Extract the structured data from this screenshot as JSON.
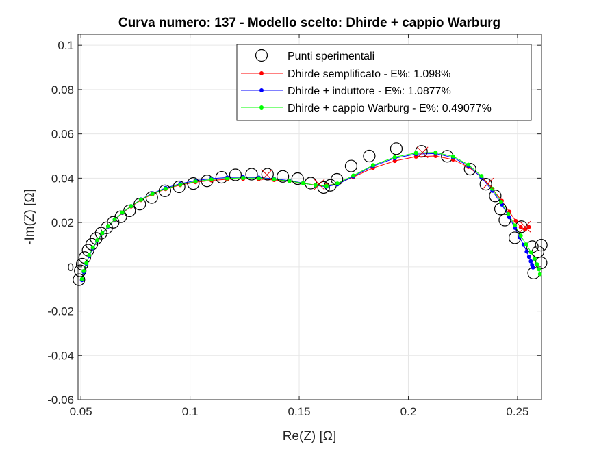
{
  "chart_data": {
    "type": "scatter",
    "title": "Curva numero: 137 - Modello scelto: Dhirde + cappio Warburg",
    "xlabel": "Re(Z) [Ω]",
    "ylabel": "-Im(Z) [Ω]",
    "xlim": [
      0.0487,
      0.261
    ],
    "ylim": [
      -0.06,
      0.105
    ],
    "xticks": [
      "0.05",
      "0.1",
      "0.15",
      "0.2",
      "0.25"
    ],
    "yticks": [
      "-0.06",
      "-0.04",
      "-0.02",
      "0",
      "0.02",
      "0.04",
      "0.06",
      "0.08",
      "0.1"
    ],
    "grid": true,
    "legend_position": "top-right",
    "colors": {
      "experimental": "#000000",
      "red": "#ff0000",
      "blue": "#0000ff",
      "green": "#00ff00",
      "fail_mark": "#e00000"
    },
    "series": [
      {
        "name": "Punti sperimentali",
        "marker": "open-circle",
        "x": [
          0.0491,
          0.0497,
          0.0506,
          0.0518,
          0.0533,
          0.055,
          0.057,
          0.0593,
          0.0618,
          0.0648,
          0.0683,
          0.0723,
          0.077,
          0.0825,
          0.0885,
          0.095,
          0.1015,
          0.1078,
          0.1145,
          0.1208,
          0.1282,
          0.1355,
          0.1425,
          0.1493,
          0.1553,
          0.1612,
          0.1643,
          0.1673,
          0.1738,
          0.1821,
          0.1945,
          0.206,
          0.2178,
          0.2283,
          0.2355,
          0.2398,
          0.2422,
          0.2442,
          0.2488,
          0.2518,
          0.2568,
          0.2594,
          0.2609,
          0.2608,
          0.2574
        ],
        "y": [
          -0.0058,
          -0.0018,
          0.0012,
          0.0042,
          0.0075,
          0.0102,
          0.0128,
          0.0152,
          0.0176,
          0.0201,
          0.0226,
          0.0253,
          0.0283,
          0.0313,
          0.0343,
          0.0361,
          0.0376,
          0.0388,
          0.0404,
          0.0415,
          0.0418,
          0.0418,
          0.0408,
          0.0398,
          0.0378,
          0.0358,
          0.0368,
          0.0395,
          0.0455,
          0.05,
          0.0533,
          0.0521,
          0.0499,
          0.0441,
          0.0373,
          0.032,
          0.0261,
          0.0211,
          0.0131,
          0.0181,
          0.0091,
          0.0068,
          0.0098,
          0.0018,
          -0.0028
        ]
      },
      {
        "name": "Dhirde semplificato - E%: 1.098%",
        "marker": "dot",
        "x": [
          0.0505,
          0.0513,
          0.0525,
          0.0538,
          0.0555,
          0.0575,
          0.0598,
          0.0625,
          0.0655,
          0.069,
          0.073,
          0.0775,
          0.0828,
          0.0888,
          0.0955,
          0.1025,
          0.1098,
          0.117,
          0.1243,
          0.1315,
          0.1385,
          0.1455,
          0.1518,
          0.1575,
          0.1625,
          0.1675,
          0.1748,
          0.1838,
          0.1938,
          0.2035,
          0.2125,
          0.2205,
          0.2275,
          0.2335,
          0.2385,
          0.2428,
          0.2463,
          0.2492,
          0.2515,
          0.2535,
          0.2552
        ],
        "y": [
          -0.0058,
          -0.0022,
          0.0015,
          0.005,
          0.0085,
          0.0118,
          0.015,
          0.0182,
          0.0212,
          0.0243,
          0.0272,
          0.0301,
          0.0328,
          0.0351,
          0.0369,
          0.0382,
          0.039,
          0.0395,
          0.0397,
          0.0396,
          0.0392,
          0.0386,
          0.0377,
          0.0369,
          0.0367,
          0.0375,
          0.0405,
          0.0446,
          0.0478,
          0.0497,
          0.05,
          0.0484,
          0.0451,
          0.0405,
          0.0352,
          0.0298,
          0.0248,
          0.0207,
          0.0179,
          0.0169,
          0.018
        ]
      },
      {
        "name": "Dhirde + induttore - E%: 1.0877%",
        "marker": "dot",
        "x": [
          0.0505,
          0.0513,
          0.0525,
          0.0538,
          0.0555,
          0.0575,
          0.0598,
          0.0625,
          0.0655,
          0.069,
          0.073,
          0.0775,
          0.0828,
          0.0888,
          0.0955,
          0.1025,
          0.1098,
          0.117,
          0.1243,
          0.1315,
          0.1385,
          0.1455,
          0.1518,
          0.1575,
          0.1625,
          0.1675,
          0.1748,
          0.1838,
          0.1938,
          0.2035,
          0.2125,
          0.2205,
          0.2275,
          0.2335,
          0.2385,
          0.2428,
          0.2462,
          0.2488,
          0.251,
          0.2528,
          0.2542,
          0.2553,
          0.2561,
          0.2567,
          0.2571
        ],
        "y": [
          -0.006,
          -0.0023,
          0.0014,
          0.0049,
          0.0084,
          0.0118,
          0.015,
          0.0182,
          0.0213,
          0.0244,
          0.0274,
          0.0304,
          0.0332,
          0.0356,
          0.0375,
          0.0389,
          0.0398,
          0.0403,
          0.0405,
          0.0403,
          0.0397,
          0.0389,
          0.0378,
          0.0367,
          0.0362,
          0.0372,
          0.0408,
          0.0455,
          0.049,
          0.0509,
          0.0511,
          0.0493,
          0.0456,
          0.0403,
          0.0343,
          0.0281,
          0.0224,
          0.0176,
          0.0134,
          0.0099,
          0.0069,
          0.0045,
          0.0025,
          0.0009,
          -0.0003
        ]
      },
      {
        "name": "Dhirde + cappio Warburg - E%: 0.49077%",
        "marker": "dot",
        "x": [
          0.0505,
          0.0513,
          0.0525,
          0.0538,
          0.0555,
          0.0575,
          0.0598,
          0.0625,
          0.0655,
          0.069,
          0.073,
          0.0775,
          0.0828,
          0.0888,
          0.0955,
          0.1025,
          0.1098,
          0.117,
          0.1243,
          0.1315,
          0.1385,
          0.1455,
          0.1518,
          0.1575,
          0.1625,
          0.1675,
          0.1748,
          0.1838,
          0.1938,
          0.2035,
          0.2125,
          0.2205,
          0.2275,
          0.2335,
          0.2385,
          0.2425,
          0.2458,
          0.2488,
          0.2515,
          0.254,
          0.2562,
          0.2578,
          0.259,
          0.2598,
          0.2603
        ],
        "y": [
          -0.0055,
          -0.0019,
          0.0017,
          0.0052,
          0.0087,
          0.012,
          0.0152,
          0.0184,
          0.0214,
          0.0245,
          0.0274,
          0.0303,
          0.033,
          0.0353,
          0.0371,
          0.0385,
          0.0394,
          0.0399,
          0.0401,
          0.04,
          0.0395,
          0.0387,
          0.0377,
          0.0368,
          0.0365,
          0.0376,
          0.0412,
          0.0459,
          0.0495,
          0.0514,
          0.0516,
          0.0498,
          0.0461,
          0.041,
          0.0352,
          0.0293,
          0.0238,
          0.0187,
          0.0141,
          0.0101,
          0.0066,
          0.0036,
          0.0011,
          -0.0011,
          -0.0033
        ]
      }
    ],
    "annotations": {
      "name": "red x markers",
      "x": [
        0.1352,
        0.1592,
        0.2065,
        0.2365,
        0.2535
      ],
      "y": [
        0.0415,
        0.0372,
        0.0516,
        0.0376,
        0.0181
      ]
    }
  }
}
